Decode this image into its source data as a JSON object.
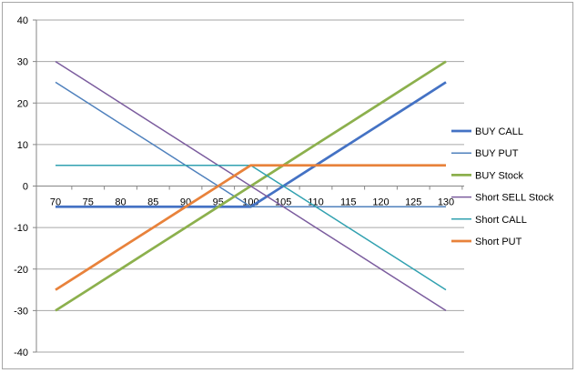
{
  "chart_data": {
    "type": "line",
    "title": "",
    "xlabel": "",
    "ylabel": "",
    "x": [
      70,
      75,
      80,
      85,
      90,
      95,
      100,
      105,
      110,
      115,
      120,
      125,
      130
    ],
    "ylim": [
      -40,
      40
    ],
    "y_ticks": [
      40,
      30,
      20,
      10,
      0,
      -10,
      -20,
      -30,
      -40
    ],
    "grid": "horizontal",
    "legend_position": "right",
    "series": [
      {
        "name": "BUY CALL",
        "color": "#4472C4",
        "values": [
          -5,
          -5,
          -5,
          -5,
          -5,
          -5,
          -5,
          0,
          5,
          10,
          15,
          20,
          25
        ]
      },
      {
        "name": "BUY PUT",
        "color": "#4F81BD",
        "values": [
          25,
          20,
          15,
          10,
          5,
          0,
          -5,
          -5,
          -5,
          -5,
          -5,
          -5,
          -5
        ]
      },
      {
        "name": "BUY Stock",
        "color": "#8CB04D",
        "values": [
          -30,
          -25,
          -20,
          -15,
          -10,
          -5,
          0,
          5,
          10,
          15,
          20,
          25,
          30
        ]
      },
      {
        "name": "Short SELL Stock",
        "color": "#7B5C9E",
        "values": [
          30,
          25,
          20,
          15,
          10,
          5,
          0,
          -5,
          -10,
          -15,
          -20,
          -25,
          -30
        ]
      },
      {
        "name": "Short CALL",
        "color": "#31A1B0",
        "values": [
          5,
          5,
          5,
          5,
          5,
          5,
          5,
          0,
          -5,
          -10,
          -15,
          -20,
          -25
        ]
      },
      {
        "name": "Short PUT",
        "color": "#E8823B",
        "values": [
          -25,
          -20,
          -15,
          -10,
          -5,
          0,
          5,
          5,
          5,
          5,
          5,
          5,
          5
        ]
      }
    ]
  }
}
